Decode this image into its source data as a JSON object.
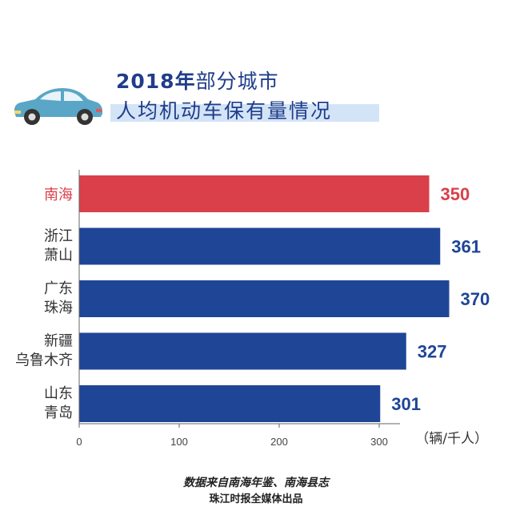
{
  "title": {
    "year": "2018年",
    "line1_rest": "部分城市",
    "line2": "人均机动车保有量情况"
  },
  "unit": "（辆/千人）",
  "footer": {
    "source": "数据来自南海年鉴、南海县志",
    "credit": "珠江时报全媒体出品"
  },
  "colors": {
    "highlight": "#d9404a",
    "bar": "#1f4597",
    "title": "#1f3d8a",
    "band": "#d4e4f7",
    "car": "#5aa6c6"
  },
  "icons": {
    "car": "car-icon"
  },
  "chart_data": {
    "type": "bar",
    "orientation": "horizontal",
    "categories": [
      [
        "南海"
      ],
      [
        "浙江",
        "萧山"
      ],
      [
        "广东",
        "珠海"
      ],
      [
        "新疆",
        "乌鲁木齐"
      ],
      [
        "山东",
        "青岛"
      ]
    ],
    "values": [
      350,
      361,
      370,
      327,
      301
    ],
    "highlight_index": 0,
    "xlim": [
      0,
      400
    ],
    "xticks": [
      0,
      100,
      200,
      300
    ],
    "grid": false
  }
}
